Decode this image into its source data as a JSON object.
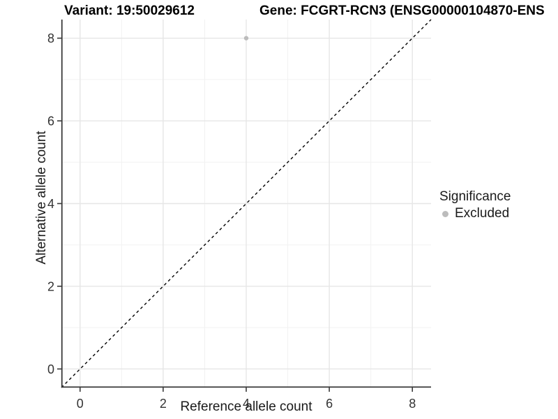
{
  "chart_data": {
    "type": "scatter",
    "titles": {
      "left": "Variant: 19:50029612",
      "right": "Gene: FCGRT-RCN3 (ENSG00000104870-ENS"
    },
    "xlabel": "Reference allele count",
    "ylabel": "Alternative allele count",
    "xlim": [
      -0.45,
      8.45
    ],
    "ylim": [
      -0.45,
      8.45
    ],
    "xticks": [
      0,
      2,
      4,
      6,
      8
    ],
    "yticks": [
      0,
      2,
      4,
      6,
      8
    ],
    "xticks_minor": [
      1,
      3,
      5,
      7
    ],
    "yticks_minor": [
      1,
      3,
      5,
      7
    ],
    "grid": "major+minor",
    "points": [
      {
        "x": 4,
        "y": 8,
        "significance": "Excluded"
      }
    ],
    "identity_line": {
      "slope": 1,
      "intercept": 0,
      "style": "dashed"
    },
    "legend": {
      "title": "Significance",
      "position": "right",
      "entries": [
        {
          "label": "Excluded",
          "color": "#bcbcbc"
        }
      ]
    },
    "colors": {
      "point": "#bcbcbc",
      "grid_major": "#e6e6e6",
      "grid_minor": "#f2f2f2",
      "axis_line": "#3a3a3a",
      "identity_line": "#000000",
      "tick_label": "#333333"
    }
  }
}
